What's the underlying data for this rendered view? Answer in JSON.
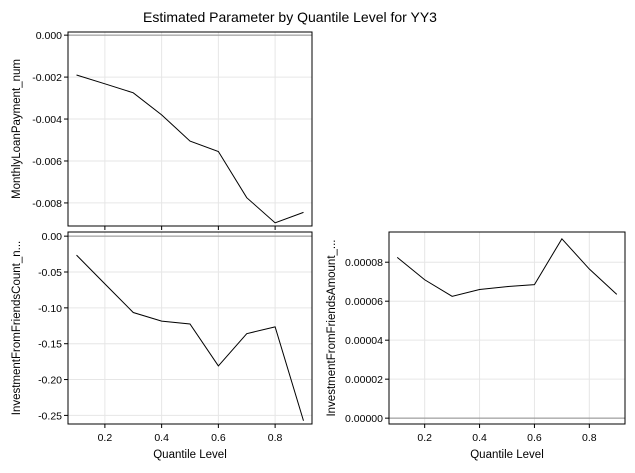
{
  "title": "Estimated Parameter by Quantile Level for YY3",
  "chart_data": [
    {
      "type": "line",
      "panel": "top-left",
      "xlabel": "",
      "ylabel": "MonthlyLoanPayment_num",
      "x": [
        0.1,
        0.2,
        0.3,
        0.4,
        0.5,
        0.6,
        0.7,
        0.8,
        0.9
      ],
      "values": [
        -0.0019,
        -0.00232,
        -0.00275,
        -0.0038,
        -0.00505,
        -0.00555,
        -0.00775,
        -0.00895,
        -0.00845
      ],
      "xlim": [
        0.07,
        0.93
      ],
      "ylim": [
        -0.0091,
        0.00015
      ],
      "xticks": [
        0.2,
        0.4,
        0.6,
        0.8
      ],
      "xtick_labels": [],
      "yticks": [
        0.0,
        -0.002,
        -0.004,
        -0.006,
        -0.008
      ],
      "ytick_labels": [
        "0.000",
        "-0.002",
        "-0.004",
        "-0.006",
        "-0.008"
      ],
      "reference_line": 0,
      "grid": true
    },
    {
      "type": "line",
      "panel": "bottom-left",
      "xlabel": "Quantile Level",
      "ylabel": "InvestmentFromFriendsCount_n...",
      "x": [
        0.1,
        0.2,
        0.3,
        0.4,
        0.5,
        0.6,
        0.7,
        0.8,
        0.9
      ],
      "values": [
        -0.0265,
        -0.0665,
        -0.1065,
        -0.1185,
        -0.1225,
        -0.181,
        -0.136,
        -0.1265,
        -0.2575
      ],
      "xlim": [
        0.07,
        0.93
      ],
      "ylim": [
        -0.262,
        0.0058
      ],
      "xticks": [
        0.2,
        0.4,
        0.6,
        0.8
      ],
      "xtick_labels": [
        "0.2",
        "0.4",
        "0.6",
        "0.8"
      ],
      "yticks": [
        0.0,
        -0.05,
        -0.1,
        -0.15,
        -0.2,
        -0.25
      ],
      "ytick_labels": [
        "0.00",
        "-0.05",
        "-0.10",
        "-0.15",
        "-0.20",
        "-0.25"
      ],
      "reference_line": 0,
      "grid": true
    },
    {
      "type": "line",
      "panel": "bottom-right",
      "xlabel": "Quantile Level",
      "ylabel": "InvestmentFromFriendsAmount_...",
      "x": [
        0.1,
        0.2,
        0.3,
        0.4,
        0.5,
        0.6,
        0.7,
        0.8,
        0.9
      ],
      "values": [
        8.25e-05,
        7.1e-05,
        6.25e-05,
        6.6e-05,
        6.75e-05,
        6.85e-05,
        9.2e-05,
        7.65e-05,
        6.35e-05
      ],
      "xlim": [
        0.07,
        0.93
      ],
      "ylim": [
        -3e-06,
        9.55e-05
      ],
      "xticks": [
        0.2,
        0.4,
        0.6,
        0.8
      ],
      "xtick_labels": [
        "0.2",
        "0.4",
        "0.6",
        "0.8"
      ],
      "yticks": [
        0.0,
        2e-05,
        4e-05,
        6e-05,
        8e-05
      ],
      "ytick_labels": [
        "0.00000",
        "0.00002",
        "0.00004",
        "0.00006",
        "0.00008"
      ],
      "reference_line": 0,
      "grid": true
    }
  ]
}
